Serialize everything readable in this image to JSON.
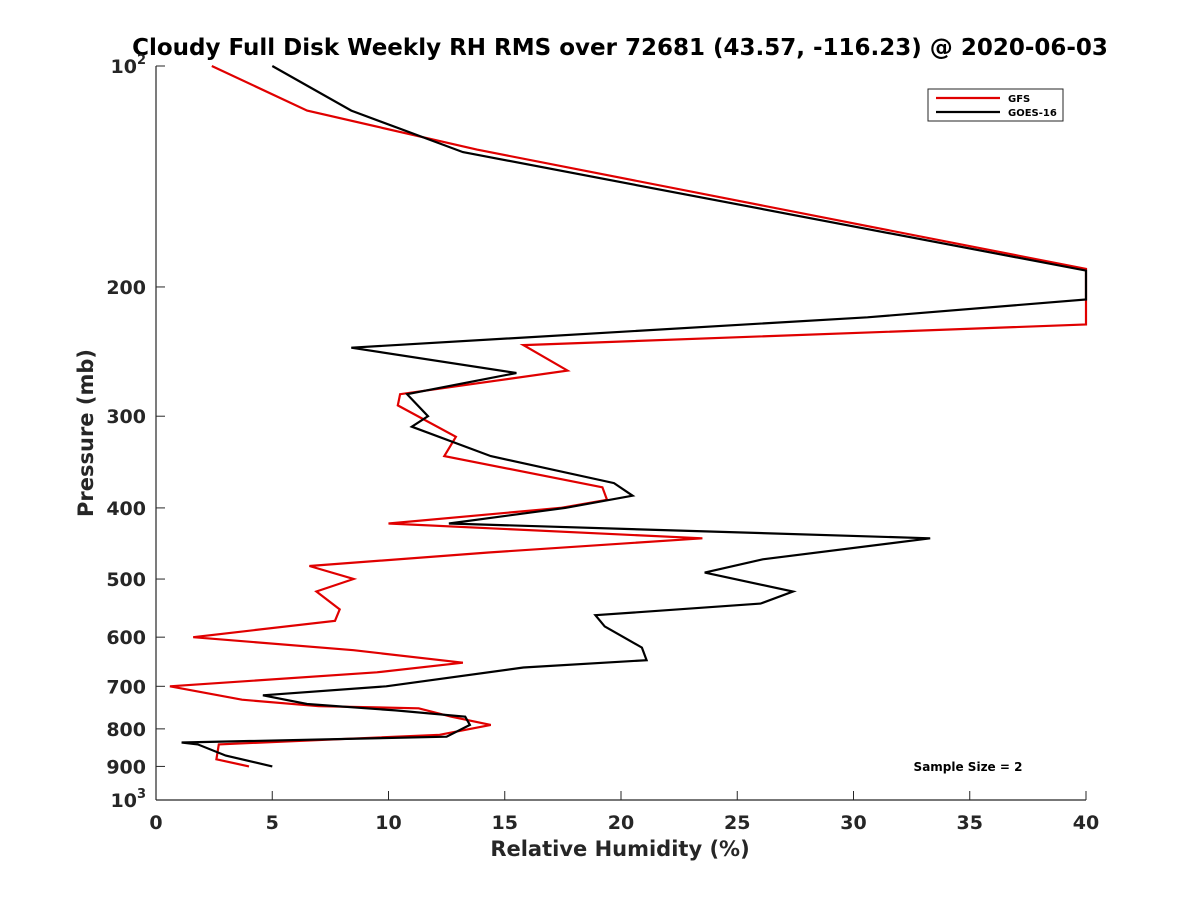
{
  "chart_data": {
    "type": "line",
    "title": "Cloudy Full Disk Weekly RH RMS over 72681 (43.57, -116.23) @ 2020-06-03",
    "xlabel": "Relative Humidity (%)",
    "ylabel": "Pressure (mb)",
    "xlim": [
      0,
      40
    ],
    "ylim": [
      100,
      1000
    ],
    "y_scale": "log",
    "y_reversed": true,
    "x_ticks": [
      "0",
      "5",
      "10",
      "15",
      "20",
      "25",
      "30",
      "35",
      "40"
    ],
    "y_ticks": [
      {
        "value": 100,
        "base": "10",
        "exp": "2"
      },
      {
        "value": 200,
        "label": "200"
      },
      {
        "value": 300,
        "label": "300"
      },
      {
        "value": 400,
        "label": "400"
      },
      {
        "value": 500,
        "label": "500"
      },
      {
        "value": 600,
        "label": "600"
      },
      {
        "value": 700,
        "label": "700"
      },
      {
        "value": 800,
        "label": "800"
      },
      {
        "value": 900,
        "label": "900"
      },
      {
        "value": 1000,
        "base": "10",
        "exp": "3"
      }
    ],
    "grid": false,
    "legend_position": "top-right",
    "annotation": "Sample Size = 2",
    "series": [
      {
        "name": "GFS",
        "color": "#e00000",
        "points": [
          [
            2.4,
            100
          ],
          [
            6.5,
            115
          ],
          [
            13.8,
            130
          ],
          [
            40,
            189
          ],
          [
            40,
            225
          ],
          [
            15.8,
            240
          ],
          [
            17.7,
            260
          ],
          [
            10.5,
            280
          ],
          [
            10.4,
            290
          ],
          [
            12.9,
            320
          ],
          [
            12.4,
            340
          ],
          [
            19.2,
            375
          ],
          [
            19.4,
            390
          ],
          [
            17.4,
            400
          ],
          [
            10.0,
            420
          ],
          [
            23.5,
            440
          ],
          [
            14.3,
            460
          ],
          [
            6.6,
            480
          ],
          [
            8.5,
            500
          ],
          [
            6.9,
            520
          ],
          [
            7.9,
            550
          ],
          [
            7.7,
            570
          ],
          [
            1.6,
            600
          ],
          [
            8.5,
            625
          ],
          [
            13.2,
            650
          ],
          [
            9.5,
            670
          ],
          [
            0.6,
            700
          ],
          [
            3.7,
            730
          ],
          [
            7.0,
            745
          ],
          [
            11.3,
            750
          ],
          [
            12.7,
            770
          ],
          [
            14.4,
            790
          ],
          [
            12.2,
            815
          ],
          [
            2.7,
            840
          ],
          [
            2.6,
            880
          ],
          [
            4.0,
            900
          ]
        ]
      },
      {
        "name": "GOES-16",
        "color": "#000000",
        "points": [
          [
            5.0,
            100
          ],
          [
            8.4,
            115
          ],
          [
            13.2,
            131
          ],
          [
            40,
            190
          ],
          [
            40,
            208
          ],
          [
            30.6,
            220
          ],
          [
            8.4,
            242
          ],
          [
            15.5,
            262
          ],
          [
            10.8,
            280
          ],
          [
            11.7,
            300
          ],
          [
            11.0,
            310
          ],
          [
            14.4,
            340
          ],
          [
            19.7,
            370
          ],
          [
            20.5,
            385
          ],
          [
            17.6,
            400
          ],
          [
            12.6,
            420
          ],
          [
            33.3,
            440
          ],
          [
            26.1,
            470
          ],
          [
            23.6,
            490
          ],
          [
            27.4,
            520
          ],
          [
            26.0,
            540
          ],
          [
            18.9,
            560
          ],
          [
            19.3,
            580
          ],
          [
            20.9,
            620
          ],
          [
            21.1,
            645
          ],
          [
            15.8,
            660
          ],
          [
            9.9,
            700
          ],
          [
            4.6,
            720
          ],
          [
            6.5,
            740
          ],
          [
            10.3,
            755
          ],
          [
            13.3,
            770
          ],
          [
            13.5,
            790
          ],
          [
            12.5,
            820
          ],
          [
            1.1,
            835
          ],
          [
            1.8,
            840
          ],
          [
            3.0,
            870
          ],
          [
            5.0,
            900
          ]
        ]
      }
    ]
  }
}
